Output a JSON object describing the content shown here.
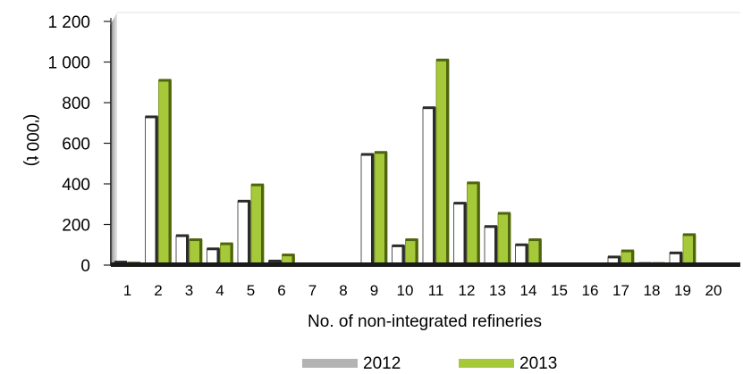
{
  "chart_data": {
    "type": "bar",
    "title": "",
    "xlabel": "No. of non-integrated refineries",
    "ylabel": "('000 t)",
    "ylim": [
      0,
      1200
    ],
    "yticks": [
      0,
      200,
      400,
      600,
      800,
      1000,
      1200
    ],
    "ytick_labels": [
      "0",
      "200",
      "400",
      "600",
      "800",
      "1 000",
      "1 200"
    ],
    "grid": false,
    "legend_position": "bottom",
    "categories": [
      "1",
      "2",
      "3",
      "4",
      "5",
      "6",
      "7",
      "8",
      "9",
      "10",
      "11",
      "12",
      "13",
      "14",
      "15",
      "16",
      "17",
      "18",
      "19",
      "20"
    ],
    "series": [
      {
        "name": "2012",
        "color": "#ffffff",
        "legend_color": "#b3b3b3",
        "values": [
          15,
          730,
          145,
          80,
          315,
          20,
          0,
          0,
          545,
          95,
          775,
          305,
          190,
          100,
          0,
          0,
          40,
          8,
          60,
          0
        ]
      },
      {
        "name": "2013",
        "color": "#a6c93a",
        "legend_color": "#a6c93a",
        "values": [
          10,
          910,
          125,
          105,
          395,
          50,
          0,
          0,
          555,
          125,
          1010,
          405,
          255,
          125,
          0,
          0,
          70,
          8,
          150,
          0
        ]
      }
    ]
  }
}
